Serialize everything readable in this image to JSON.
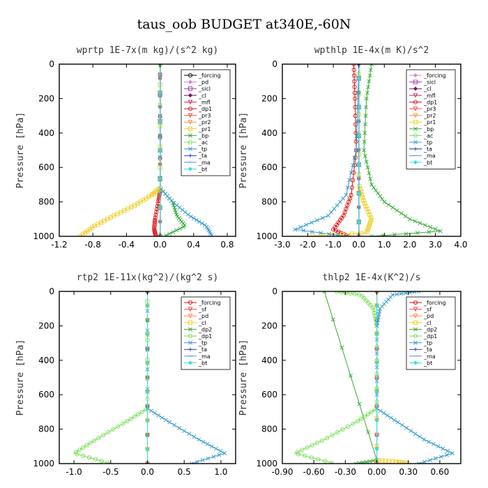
{
  "title": "taus_oob  BUDGET at340E,-60N",
  "chart_data": [
    {
      "type": "line",
      "title": "wprtp  1E-7x(m kg)/(s^2 kg)",
      "ylabel": "Pressure [hPa]",
      "xlim": [
        -1.2,
        0.9
      ],
      "ylim": [
        1000,
        0
      ],
      "xticks": [
        "-1.2",
        "-0.8",
        "-0.4",
        "0.0",
        "0.4",
        "0.8"
      ],
      "yticks": [
        "0",
        "200",
        "400",
        "600",
        "800",
        "1000"
      ],
      "legend_position": "top-right",
      "series": [
        {
          "name": "_forcing",
          "color": "#000000",
          "marker": "circle",
          "points": [
            [
              0,
              0
            ],
            [
              0,
              1000
            ]
          ]
        },
        {
          "name": "_pd",
          "color": "#cc88cc",
          "marker": "diamond",
          "points": [
            [
              0,
              0
            ],
            [
              0,
              1000
            ]
          ]
        },
        {
          "name": "_sicl",
          "color": "#9933aa",
          "marker": "square",
          "points": [
            [
              0,
              0
            ],
            [
              0,
              1000
            ]
          ]
        },
        {
          "name": "_cl",
          "color": "#771166",
          "marker": "diamond",
          "points": [
            [
              0,
              0
            ],
            [
              0,
              1000
            ]
          ]
        },
        {
          "name": "_mfl",
          "color": "#cc2255",
          "marker": "tri",
          "points": [
            [
              0,
              0
            ],
            [
              0,
              1000
            ]
          ]
        },
        {
          "name": "_dp1",
          "color": "#dd1111",
          "marker": "circle",
          "points": [
            [
              0,
              0
            ],
            [
              0,
              730
            ],
            [
              -0.02,
              800
            ],
            [
              -0.06,
              900
            ],
            [
              -0.07,
              960
            ],
            [
              -0.05,
              1000
            ]
          ]
        },
        {
          "name": "_pr3",
          "color": "#ff4444",
          "marker": "tri",
          "points": [
            [
              0,
              0
            ],
            [
              0,
              1000
            ]
          ]
        },
        {
          "name": "_pr2",
          "color": "#ff8833",
          "marker": "tri",
          "points": [
            [
              0,
              0
            ],
            [
              0,
              1000
            ]
          ]
        },
        {
          "name": "_pr1",
          "color": "#eecc22",
          "marker": "square",
          "points": [
            [
              0,
              0
            ],
            [
              0,
              720
            ],
            [
              -0.1,
              760
            ],
            [
              -0.3,
              820
            ],
            [
              -0.55,
              880
            ],
            [
              -0.78,
              940
            ],
            [
              -0.95,
              1000
            ]
          ]
        },
        {
          "name": "_bp",
          "color": "#33aa33",
          "marker": "cross",
          "points": [
            [
              0,
              0
            ],
            [
              0,
              720
            ],
            [
              0.15,
              800
            ],
            [
              0.2,
              880
            ],
            [
              0.3,
              940
            ],
            [
              0.05,
              1000
            ]
          ]
        },
        {
          "name": "_ac",
          "color": "#77dd55",
          "marker": "circle",
          "points": [
            [
              0,
              0
            ],
            [
              0,
              1000
            ]
          ]
        },
        {
          "name": "_tp",
          "color": "#3399cc",
          "marker": "cross",
          "points": [
            [
              0,
              0
            ],
            [
              0,
              720
            ],
            [
              0.15,
              800
            ],
            [
              0.35,
              880
            ],
            [
              0.55,
              940
            ],
            [
              0.62,
              1000
            ]
          ]
        },
        {
          "name": "_ta",
          "color": "#2233bb",
          "marker": "plus",
          "points": [
            [
              0,
              0
            ],
            [
              0,
              1000
            ]
          ]
        },
        {
          "name": "_ma",
          "color": "#5588ff",
          "marker": "dash",
          "points": [
            [
              0,
              0
            ],
            [
              0,
              1000
            ]
          ]
        },
        {
          "name": "_bt",
          "color": "#33dddd",
          "marker": "diamond",
          "points": [
            [
              0,
              0
            ],
            [
              0,
              1000
            ]
          ]
        }
      ]
    },
    {
      "type": "line",
      "title": "wpthlp  1E-4x(m K)/s^2",
      "ylabel": "Pressure [hPa]",
      "xlim": [
        -3.0,
        4.0
      ],
      "ylim": [
        1000,
        0
      ],
      "xticks": [
        "-3.0",
        "-2.0",
        "-1.0",
        "0.0",
        "1.0",
        "2.0",
        "3.0",
        "4.0"
      ],
      "yticks": [
        "0",
        "200",
        "400",
        "600",
        "800",
        "1000"
      ],
      "legend_position": "top-right",
      "series": [
        {
          "name": "_forcing",
          "color": "#cc88cc",
          "marker": "diamond",
          "points": [
            [
              0,
              0
            ],
            [
              0,
              1000
            ]
          ]
        },
        {
          "name": "_sicl",
          "color": "#9933aa",
          "marker": "square",
          "points": [
            [
              0,
              0
            ],
            [
              0,
              1000
            ]
          ]
        },
        {
          "name": "_cl",
          "color": "#771166",
          "marker": "diamond",
          "points": [
            [
              0,
              0
            ],
            [
              0,
              1000
            ]
          ]
        },
        {
          "name": "_mfl",
          "color": "#cc2255",
          "marker": "tri",
          "points": [
            [
              0,
              0
            ],
            [
              0,
              1000
            ]
          ]
        },
        {
          "name": "_dp1",
          "color": "#dd1111",
          "marker": "circle",
          "points": [
            [
              -0.2,
              0
            ],
            [
              -0.15,
              200
            ],
            [
              -0.1,
              500
            ],
            [
              -0.3,
              760
            ],
            [
              -0.6,
              880
            ],
            [
              -1.0,
              960
            ],
            [
              -0.4,
              1000
            ]
          ]
        },
        {
          "name": "_pr3",
          "color": "#ff4444",
          "marker": "tri",
          "points": [
            [
              0,
              0
            ],
            [
              0,
              1000
            ]
          ]
        },
        {
          "name": "_pr2",
          "color": "#ff8833",
          "marker": "tri",
          "points": [
            [
              0,
              0
            ],
            [
              0,
              1000
            ]
          ]
        },
        {
          "name": "_pr1",
          "color": "#eecc22",
          "marker": "square",
          "points": [
            [
              0,
              0
            ],
            [
              0,
              700
            ],
            [
              0.2,
              800
            ],
            [
              0.5,
              900
            ],
            [
              0.3,
              980
            ],
            [
              -2.0,
              1000
            ]
          ]
        },
        {
          "name": "_bp",
          "color": "#33aa33",
          "marker": "cross",
          "points": [
            [
              0.5,
              0
            ],
            [
              0.3,
              200
            ],
            [
              0.2,
              500
            ],
            [
              0.5,
              700
            ],
            [
              1.0,
              800
            ],
            [
              2.0,
              900
            ],
            [
              3.2,
              970
            ],
            [
              0.5,
              1000
            ]
          ]
        },
        {
          "name": "_ac",
          "color": "#77dd55",
          "marker": "circle",
          "points": [
            [
              0,
              0
            ],
            [
              0,
              1000
            ]
          ]
        },
        {
          "name": "_tp",
          "color": "#3399cc",
          "marker": "cross",
          "points": [
            [
              0,
              0
            ],
            [
              -0.1,
              500
            ],
            [
              -0.5,
              760
            ],
            [
              -1.2,
              880
            ],
            [
              -2.5,
              960
            ],
            [
              -0.5,
              1000
            ]
          ]
        },
        {
          "name": "_ta",
          "color": "#2233bb",
          "marker": "plus",
          "points": [
            [
              0,
              0
            ],
            [
              0,
              1000
            ]
          ]
        },
        {
          "name": "_ma",
          "color": "#5588ff",
          "marker": "dash",
          "points": [
            [
              0,
              0
            ],
            [
              0,
              1000
            ]
          ]
        },
        {
          "name": "_bt",
          "color": "#33dddd",
          "marker": "diamond",
          "points": [
            [
              0,
              0
            ],
            [
              0,
              1000
            ]
          ]
        }
      ]
    },
    {
      "type": "line",
      "title": "rtp2  1E-11x(kg^2)/(kg^2 s)",
      "ylabel": "Pressure [hPa]",
      "xlim": [
        -1.2,
        1.2
      ],
      "ylim": [
        1000,
        0
      ],
      "xticks": [
        "-1.0",
        "-0.5",
        "0.0",
        "0.5",
        "1.0"
      ],
      "yticks": [
        "0",
        "200",
        "400",
        "600",
        "800",
        "1000"
      ],
      "legend_position": "top-right",
      "series": [
        {
          "name": "_forcing",
          "color": "#dd1111",
          "marker": "circle",
          "points": [
            [
              0,
              0
            ],
            [
              0,
              1000
            ]
          ]
        },
        {
          "name": "_sf",
          "color": "#ff4444",
          "marker": "tri",
          "points": [
            [
              0,
              0
            ],
            [
              0,
              1000
            ]
          ]
        },
        {
          "name": "_pd",
          "color": "#ff8833",
          "marker": "tri",
          "points": [
            [
              0,
              0
            ],
            [
              0,
              1000
            ]
          ]
        },
        {
          "name": "_cl",
          "color": "#eecc22",
          "marker": "square",
          "points": [
            [
              0,
              0
            ],
            [
              0,
              1000
            ]
          ]
        },
        {
          "name": "_dp2",
          "color": "#33aa33",
          "marker": "cross",
          "points": [
            [
              0,
              0
            ],
            [
              0,
              1000
            ]
          ]
        },
        {
          "name": "_dp1",
          "color": "#77dd55",
          "marker": "circle",
          "points": [
            [
              0,
              0
            ],
            [
              0,
              680
            ],
            [
              -0.3,
              760
            ],
            [
              -0.7,
              860
            ],
            [
              -1.0,
              940
            ],
            [
              -0.5,
              1000
            ]
          ]
        },
        {
          "name": "_tp",
          "color": "#3399cc",
          "marker": "cross",
          "points": [
            [
              0,
              0
            ],
            [
              0,
              680
            ],
            [
              0.3,
              760
            ],
            [
              0.7,
              860
            ],
            [
              1.05,
              940
            ],
            [
              0.6,
              1000
            ]
          ]
        },
        {
          "name": "_ta",
          "color": "#2233bb",
          "marker": "plus",
          "points": [
            [
              0,
              0
            ],
            [
              0,
              1000
            ]
          ]
        },
        {
          "name": "_ma",
          "color": "#5588ff",
          "marker": "dash",
          "points": [
            [
              0,
              0
            ],
            [
              0,
              1000
            ]
          ]
        },
        {
          "name": "_bt",
          "color": "#33dddd",
          "marker": "diamond",
          "points": [
            [
              0,
              0
            ],
            [
              0,
              1000
            ]
          ]
        }
      ]
    },
    {
      "type": "line",
      "title": "thlp2  1E-4x(K^2)/s",
      "ylabel": "Pressure [hPa]",
      "xlim": [
        -0.9,
        0.8
      ],
      "ylim": [
        1000,
        0
      ],
      "xticks": [
        "-0.90",
        "-0.60",
        "-0.30",
        "0.00",
        "0.30",
        "0.60"
      ],
      "yticks": [
        "0",
        "200",
        "400",
        "600",
        "800",
        "1000"
      ],
      "legend_position": "top-right",
      "series": [
        {
          "name": "_forcing",
          "color": "#dd1111",
          "marker": "circle",
          "points": [
            [
              0,
              0
            ],
            [
              0,
              1000
            ]
          ]
        },
        {
          "name": "_sf",
          "color": "#ff4444",
          "marker": "tri",
          "points": [
            [
              0,
              0
            ],
            [
              0,
              1000
            ]
          ]
        },
        {
          "name": "_pd",
          "color": "#ff8833",
          "marker": "tri",
          "points": [
            [
              0,
              0
            ],
            [
              0,
              1000
            ]
          ]
        },
        {
          "name": "_cl",
          "color": "#eecc22",
          "marker": "square",
          "points": [
            [
              0,
              0
            ],
            [
              0,
              980
            ],
            [
              0.2,
              990
            ],
            [
              0.3,
              1000
            ]
          ]
        },
        {
          "name": "_dp2",
          "color": "#33aa33",
          "marker": "cross",
          "points": [
            [
              -0.5,
              0
            ],
            [
              0,
              980
            ],
            [
              -0.2,
              1000
            ]
          ]
        },
        {
          "name": "_dp1",
          "color": "#77dd55",
          "marker": "circle",
          "points": [
            [
              -0.4,
              0
            ],
            [
              -0.15,
              20
            ],
            [
              -0.03,
              100
            ],
            [
              0,
              200
            ],
            [
              0,
              680
            ],
            [
              -0.2,
              760
            ],
            [
              -0.5,
              860
            ],
            [
              -0.78,
              940
            ],
            [
              -0.4,
              1000
            ]
          ]
        },
        {
          "name": "_tp",
          "color": "#3399cc",
          "marker": "cross",
          "points": [
            [
              0.4,
              0
            ],
            [
              0.15,
              20
            ],
            [
              0.03,
              100
            ],
            [
              0,
              200
            ],
            [
              0,
              680
            ],
            [
              0.2,
              760
            ],
            [
              0.45,
              860
            ],
            [
              0.72,
              940
            ],
            [
              0.4,
              1000
            ]
          ]
        },
        {
          "name": "_ta",
          "color": "#2233bb",
          "marker": "plus",
          "points": [
            [
              0,
              0
            ],
            [
              0,
              1000
            ]
          ]
        },
        {
          "name": "_ma",
          "color": "#5588ff",
          "marker": "dash",
          "points": [
            [
              0,
              0
            ],
            [
              0,
              1000
            ]
          ]
        },
        {
          "name": "_bt",
          "color": "#33dddd",
          "marker": "diamond",
          "points": [
            [
              0,
              0
            ],
            [
              0,
              1000
            ]
          ]
        }
      ]
    }
  ]
}
